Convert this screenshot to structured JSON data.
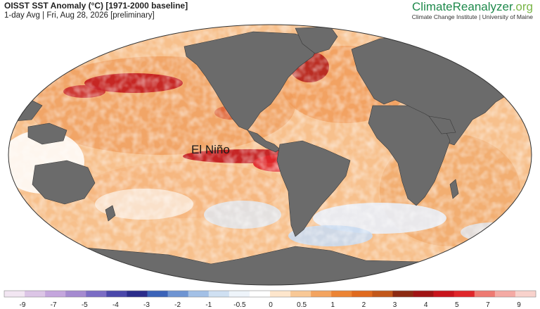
{
  "header": {
    "title": "OISST SST Anomaly (°C) [1971-2000 baseline]",
    "subtitle": "1-day Avg | Fri, Aug 28, 2026 [preliminary]"
  },
  "brand": {
    "name_part1": "ClimateReanalyzer",
    "name_part2": ".org",
    "subtitle": "Climate Change Institute | University of Maine"
  },
  "map": {
    "projection": "Robinson-like world map",
    "annotation": "El Niño",
    "colors": {
      "land": "#6b6b6b",
      "strong_warm": "#c1181c",
      "warm": "#f0883c",
      "mild_warm": "#f7c08c",
      "neutral": "#ffffff",
      "cool": "#c9daf0"
    }
  },
  "colorbar": {
    "labels": [
      "-9",
      "-7",
      "-5",
      "-4",
      "-3",
      "-2",
      "-1",
      "-0.5",
      "0",
      "0.5",
      "1",
      "2",
      "3",
      "4",
      "5",
      "7",
      "9"
    ],
    "colors": [
      "#f2e6f2",
      "#dcc5e6",
      "#c4a6dd",
      "#a58ad0",
      "#7b6cc4",
      "#4a47aa",
      "#2a2c8a",
      "#3b63b8",
      "#6e94d2",
      "#a3c0e6",
      "#cfe0f2",
      "#eef4fa",
      "#ffffff",
      "#fde6cc",
      "#f8c896",
      "#f3a460",
      "#ec8434",
      "#e06a1e",
      "#c2571a",
      "#8c2a12",
      "#a01414",
      "#c8141c",
      "#e0262a",
      "#ee7a72",
      "#f4aaa4",
      "#f8d2cc"
    ]
  }
}
